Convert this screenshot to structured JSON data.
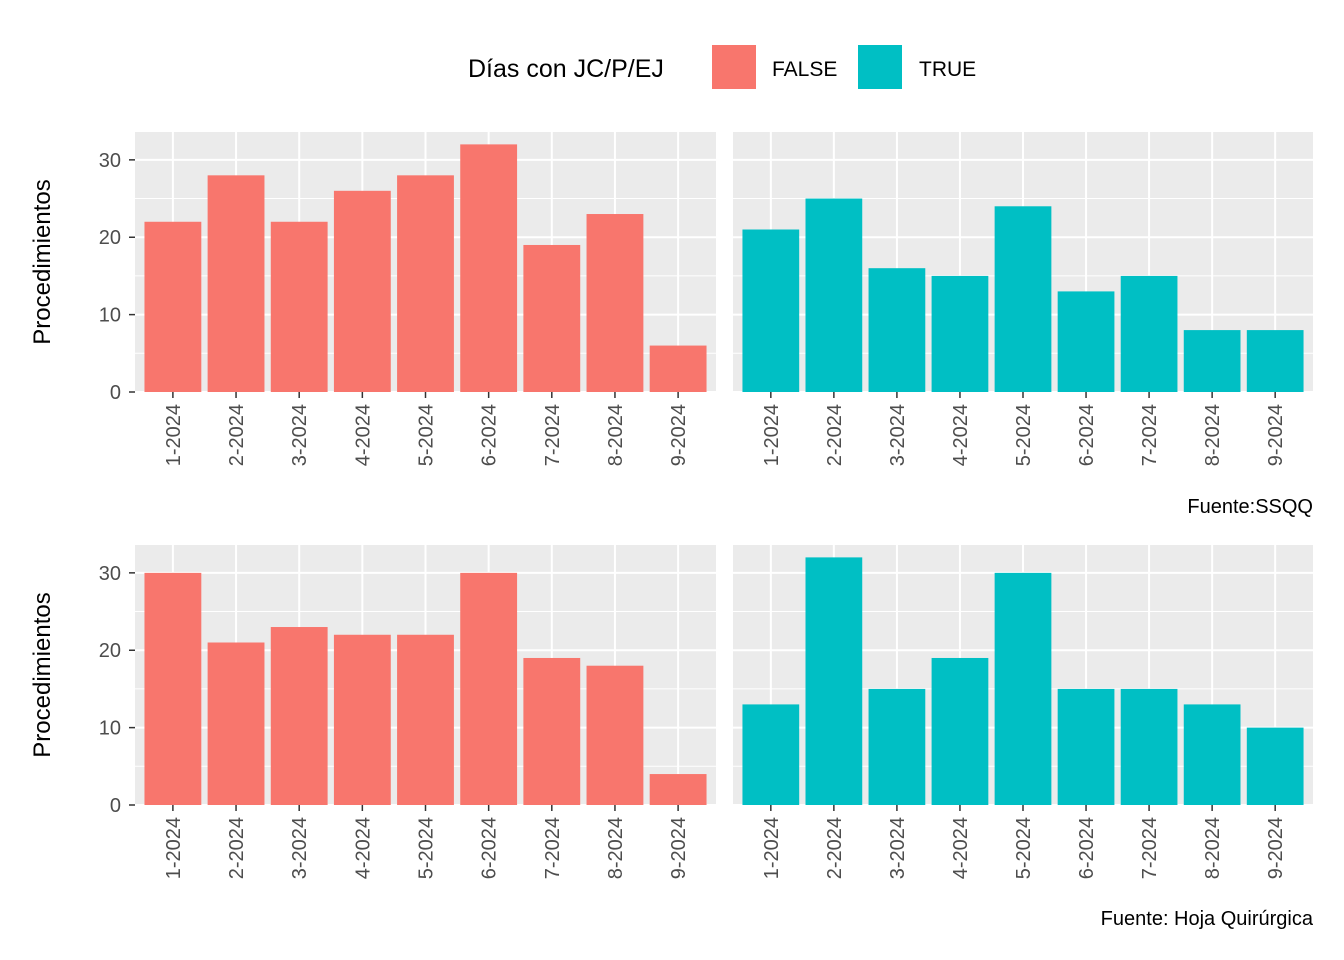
{
  "legend": {
    "title": "Días con JC/P/EJ",
    "items": [
      {
        "label": "FALSE",
        "color": "#F8766D"
      },
      {
        "label": "TRUE",
        "color": "#00BFC4"
      }
    ]
  },
  "chart_data": [
    {
      "type": "bar",
      "ylabel": "Procedimientos",
      "caption": "Fuente:SSQQ",
      "ylim": [
        0,
        33.6
      ],
      "yticks": [
        0,
        10,
        20,
        30
      ],
      "categories": [
        "1-2024",
        "2-2024",
        "3-2024",
        "4-2024",
        "5-2024",
        "6-2024",
        "7-2024",
        "8-2024",
        "9-2024"
      ],
      "series": [
        {
          "name": "FALSE",
          "values": [
            22,
            28,
            22,
            26,
            28,
            32,
            19,
            23,
            6
          ]
        },
        {
          "name": "TRUE",
          "values": [
            21,
            25,
            16,
            15,
            24,
            13,
            15,
            8,
            8
          ]
        }
      ]
    },
    {
      "type": "bar",
      "ylabel": "Procedimientos",
      "caption": "Fuente: Hoja Quirúrgica",
      "ylim": [
        0,
        33.6
      ],
      "yticks": [
        0,
        10,
        20,
        30
      ],
      "categories": [
        "1-2024",
        "2-2024",
        "3-2024",
        "4-2024",
        "5-2024",
        "6-2024",
        "7-2024",
        "8-2024",
        "9-2024"
      ],
      "series": [
        {
          "name": "FALSE",
          "values": [
            30,
            21,
            23,
            22,
            22,
            30,
            19,
            18,
            4
          ]
        },
        {
          "name": "TRUE",
          "values": [
            13,
            32,
            15,
            19,
            30,
            15,
            15,
            13,
            10
          ]
        }
      ]
    }
  ]
}
